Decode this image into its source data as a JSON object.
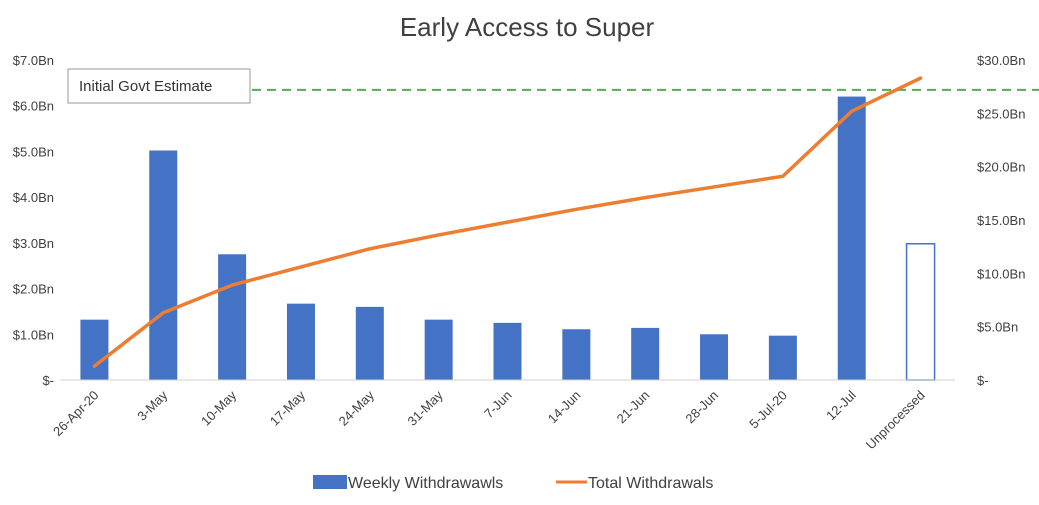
{
  "chart_data": {
    "type": "bar",
    "title": "Early Access to Super",
    "categories": [
      "26-Apr-20",
      "3-May",
      "10-May",
      "17-May",
      "24-May",
      "31-May",
      "7-Jun",
      "14-Jun",
      "21-Jun",
      "28-Jun",
      "5-Jul-20",
      "12-Jul",
      "Unprocessed"
    ],
    "series": [
      {
        "name": "Weekly Withdrawawls",
        "type": "bar",
        "axis": "left",
        "values": [
          1.32,
          5.02,
          2.75,
          1.67,
          1.6,
          1.32,
          1.25,
          1.11,
          1.14,
          1.0,
          0.97,
          6.2,
          2.98
        ],
        "unfilled": [
          false,
          false,
          false,
          false,
          false,
          false,
          false,
          false,
          false,
          false,
          false,
          false,
          true
        ]
      },
      {
        "name": "Total Withdrawals",
        "type": "line",
        "axis": "right",
        "values": [
          1.3,
          6.3,
          8.9,
          10.6,
          12.3,
          13.6,
          14.8,
          16.0,
          17.1,
          18.1,
          19.1,
          25.2,
          28.3
        ]
      }
    ],
    "reference_line": {
      "label": "Initial Govt Estimate",
      "axis": "right",
      "value": 27.2,
      "color": "#4CAF50",
      "style": "dashed"
    },
    "yaxis_left": {
      "ylim": [
        0,
        7
      ],
      "ticks": [
        0,
        1,
        2,
        3,
        4,
        5,
        6,
        7
      ],
      "tick_labels": [
        "$-",
        "$1.0Bn",
        "$2.0Bn",
        "$3.0Bn",
        "$4.0Bn",
        "$5.0Bn",
        "$6.0Bn",
        "$7.0Bn"
      ]
    },
    "yaxis_right": {
      "ylim": [
        0,
        30
      ],
      "ticks": [
        0,
        5,
        10,
        15,
        20,
        25,
        30
      ],
      "tick_labels": [
        "$-",
        "$5.0Bn",
        "$10.0Bn",
        "$15.0Bn",
        "$20.0Bn",
        "$25.0Bn",
        "$30.0Bn"
      ]
    },
    "grid": false,
    "legend_position": "bottom",
    "colors": {
      "bar": "#4472C4",
      "line": "#ED7D31",
      "reference": "#4CAF50",
      "text": "#404040"
    }
  }
}
